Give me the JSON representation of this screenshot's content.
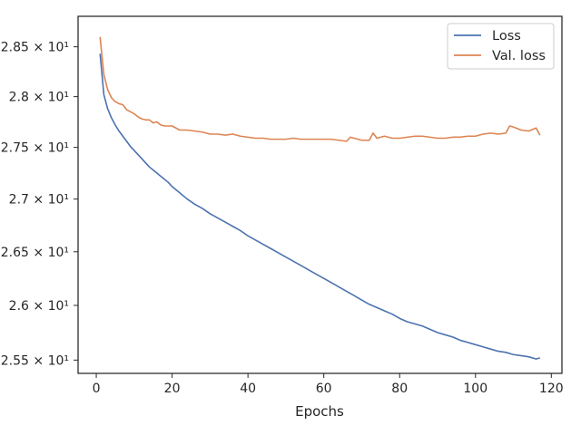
{
  "chart_data": {
    "type": "line",
    "title": "",
    "xlabel": "Epochs",
    "ylabel": "",
    "xlim": [
      -4.8,
      122.8
    ],
    "ylim": [
      25.38,
      28.81
    ],
    "y_scale": "log",
    "grid": false,
    "legend_position": "top-right",
    "x_ticks": [
      0,
      20,
      40,
      60,
      80,
      100,
      120
    ],
    "y_ticks": [
      {
        "value": 25.5,
        "label": "2.55 × 10¹"
      },
      {
        "value": 26.0,
        "label": "2.6 × 10¹"
      },
      {
        "value": 26.5,
        "label": "2.65 × 10¹"
      },
      {
        "value": 27.0,
        "label": "2.7 × 10¹"
      },
      {
        "value": 27.5,
        "label": "2.75 × 10¹"
      },
      {
        "value": 28.0,
        "label": "2.8 × 10¹"
      },
      {
        "value": 28.5,
        "label": "2.85 × 10¹"
      }
    ],
    "series": [
      {
        "name": "Loss",
        "color": "#4c72b0",
        "x": [
          1,
          2,
          3,
          4,
          5,
          6,
          7,
          8,
          9,
          10,
          11,
          12,
          13,
          14,
          15,
          16,
          17,
          18,
          19,
          20,
          22,
          24,
          26,
          28,
          30,
          32,
          34,
          36,
          38,
          40,
          42,
          44,
          46,
          48,
          50,
          52,
          54,
          56,
          58,
          60,
          62,
          64,
          66,
          68,
          70,
          72,
          74,
          76,
          78,
          80,
          82,
          84,
          86,
          88,
          90,
          92,
          94,
          96,
          98,
          100,
          102,
          104,
          106,
          108,
          110,
          112,
          114,
          116,
          117
        ],
        "y": [
          28.43,
          28.02,
          27.88,
          27.79,
          27.72,
          27.66,
          27.61,
          27.56,
          27.51,
          27.47,
          27.43,
          27.39,
          27.35,
          27.31,
          27.28,
          27.25,
          27.22,
          27.19,
          27.16,
          27.12,
          27.06,
          27.0,
          26.95,
          26.91,
          26.86,
          26.82,
          26.78,
          26.74,
          26.7,
          26.65,
          26.61,
          26.57,
          26.53,
          26.49,
          26.45,
          26.41,
          26.37,
          26.33,
          26.29,
          26.25,
          26.21,
          26.17,
          26.13,
          26.09,
          26.05,
          26.01,
          25.98,
          25.95,
          25.92,
          25.88,
          25.85,
          25.83,
          25.81,
          25.78,
          25.75,
          25.73,
          25.71,
          25.68,
          25.66,
          25.64,
          25.62,
          25.6,
          25.58,
          25.57,
          25.55,
          25.54,
          25.53,
          25.51,
          25.52
        ]
      },
      {
        "name": "Val. loss",
        "color": "#dd8452",
        "x": [
          1,
          2,
          3,
          4,
          5,
          6,
          7,
          8,
          9,
          10,
          11,
          12,
          13,
          14,
          15,
          16,
          17,
          18,
          19,
          20,
          22,
          24,
          26,
          28,
          30,
          32,
          34,
          36,
          38,
          40,
          42,
          44,
          46,
          48,
          50,
          52,
          54,
          56,
          58,
          60,
          62,
          64,
          66,
          67,
          68,
          70,
          72,
          73,
          74,
          76,
          78,
          80,
          82,
          84,
          86,
          88,
          90,
          92,
          94,
          96,
          98,
          100,
          102,
          104,
          106,
          108,
          109,
          110,
          112,
          114,
          116,
          117
        ],
        "y": [
          28.6,
          28.22,
          28.07,
          27.99,
          27.95,
          27.93,
          27.92,
          27.87,
          27.85,
          27.83,
          27.8,
          27.78,
          27.77,
          27.77,
          27.74,
          27.75,
          27.72,
          27.71,
          27.71,
          27.71,
          27.67,
          27.67,
          27.66,
          27.65,
          27.63,
          27.63,
          27.62,
          27.63,
          27.61,
          27.6,
          27.59,
          27.59,
          27.58,
          27.58,
          27.58,
          27.59,
          27.58,
          27.58,
          27.58,
          27.58,
          27.58,
          27.57,
          27.56,
          27.6,
          27.59,
          27.57,
          27.57,
          27.64,
          27.59,
          27.61,
          27.59,
          27.59,
          27.6,
          27.61,
          27.61,
          27.6,
          27.59,
          27.59,
          27.6,
          27.6,
          27.61,
          27.61,
          27.63,
          27.64,
          27.63,
          27.64,
          27.71,
          27.7,
          27.67,
          27.66,
          27.69,
          27.62
        ]
      }
    ]
  }
}
